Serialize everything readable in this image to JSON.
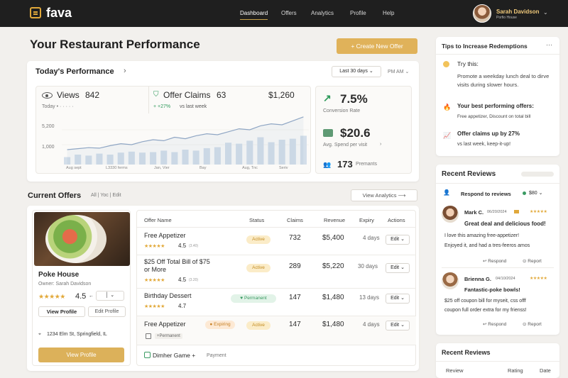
{
  "nav": {
    "logo": "fava",
    "items": [
      "Dashboard",
      "Offers",
      "Analytics",
      "Profile",
      "Help"
    ],
    "user_name": "Sarah Davidson",
    "user_sub": "Porfio House"
  },
  "page": {
    "title": "Your Restaurant Performance",
    "create_button": "+ Create New Offer"
  },
  "today": {
    "title": "Today's Performance",
    "range": "Last 30 days",
    "range2": "PM AM",
    "views_label": "Views",
    "views_value": "842",
    "views_sub": "Today",
    "claims_label": "Offer Claims",
    "claims_value": "63",
    "claims_delta": "+27%",
    "claims_delta_text": "vs last week",
    "revenue_value": "$1,260",
    "y_ticks": [
      "5,200",
      "1,000"
    ],
    "x_ticks": [
      "Aug sept",
      "L3330 ferms",
      "Jan, Vier",
      "Bay",
      "Aug, Tnc",
      "Seriv"
    ],
    "conversion_value": "7.5%",
    "conversion_label": "Conversion Rate",
    "spend_value": "$20.6",
    "spend_label": "Avg. Spend per visit",
    "premants_value": "173",
    "premants_label": "Premants"
  },
  "chart_data": {
    "type": "bar",
    "values": [
      15,
      20,
      18,
      22,
      20,
      24,
      26,
      24,
      25,
      28,
      25,
      30,
      28,
      33,
      35,
      44,
      42,
      48,
      55,
      45,
      50,
      52,
      58
    ],
    "line": [
      30,
      32,
      34,
      33,
      38,
      42,
      40,
      46,
      50,
      48,
      55,
      52,
      58,
      62,
      60,
      66,
      72,
      70,
      78,
      82,
      80,
      88,
      96
    ],
    "ylim": [
      0,
      100
    ]
  },
  "offers": {
    "title": "Current Offers",
    "filters": "All | Yoc | Edit",
    "view_analytics": "View Analytics",
    "restaurant_name": "Poke House",
    "owner": "Owner: Sarah Davidson",
    "rating": "4.5",
    "view_profile_small": "View Profile",
    "edit_profile": "Edit Profile",
    "address": "1234 Elm St, Springfield, IL",
    "view_profile_btn": "View Profile",
    "headers": [
      "Offer Name",
      "Status",
      "Claims",
      "Revenue",
      "Expiry",
      "Actions"
    ],
    "rows": [
      {
        "name": "Free Appetizer",
        "name2": "",
        "rating": "4.5",
        "reviews": "(3.40)",
        "status": "Active",
        "claims": "732",
        "revenue": "$5,400",
        "expiry": "4 days",
        "action": "Edit"
      },
      {
        "name": "$25 Off Total Bill of $75",
        "name2": "or More",
        "rating": "4.5",
        "reviews": "(3.20)",
        "status": "Active",
        "claims": "289",
        "revenue": "$5,220",
        "expiry": "30 days",
        "action": "Edit"
      },
      {
        "name": "Birthday Dessert",
        "name2": "",
        "rating": "4.7",
        "reviews": "",
        "status": "Permanent",
        "claims": "147",
        "revenue": "$1,480",
        "expiry": "13 days",
        "action": "Edit"
      },
      {
        "name": "Free Appetizer",
        "name2": "",
        "tag": "Expiring",
        "sub": "+Permanent",
        "status": "Active",
        "claims": "147",
        "revenue": "$1,480",
        "expiry": "4 days",
        "action": "Edit"
      }
    ],
    "footer_game": "Dimher Game",
    "footer_payment": "Payment"
  },
  "tips": {
    "title": "Tips to Increase Redemptions",
    "t1_title": "Try this:",
    "t1_body": "Promote a weekday lunch deal to dirve visits during slower hours.",
    "t2_title": "Your best performing offers:",
    "t2_body": "Free appetizer, Discount on total bill",
    "t3_title": "Offer claims up by 27%",
    "t3_body": "vs last week, keep-it-up!"
  },
  "reviews": {
    "title": "Recent Reviews",
    "respond_label": "Respond to reviews",
    "respond_amount": "$80",
    "items": [
      {
        "name": "Mark C.",
        "date": "06/20/2024",
        "headline": "Great deal and delicious food!",
        "body1": "I love this amazing free-appetizer!",
        "body2": "Enjoyed it, and had a tres-feeros amos",
        "respond": "Respond",
        "report": "Report"
      },
      {
        "name": "Brienna G.",
        "date": "04/10/2024",
        "headline": "Fantastic-poke bowls!",
        "body1": "$25 off coupon bill for myseit, css offf",
        "body2": "coupon full order extra for my frienss!",
        "respond": "Respond",
        "report": "Report"
      }
    ],
    "bottom_title": "Recent Reviews",
    "bottom_cols": [
      "Review",
      "Rating",
      "Date"
    ]
  },
  "colors": {
    "accent": "#e0b25a",
    "topbar": "#1f1f1f",
    "green": "#2e9a5a"
  }
}
